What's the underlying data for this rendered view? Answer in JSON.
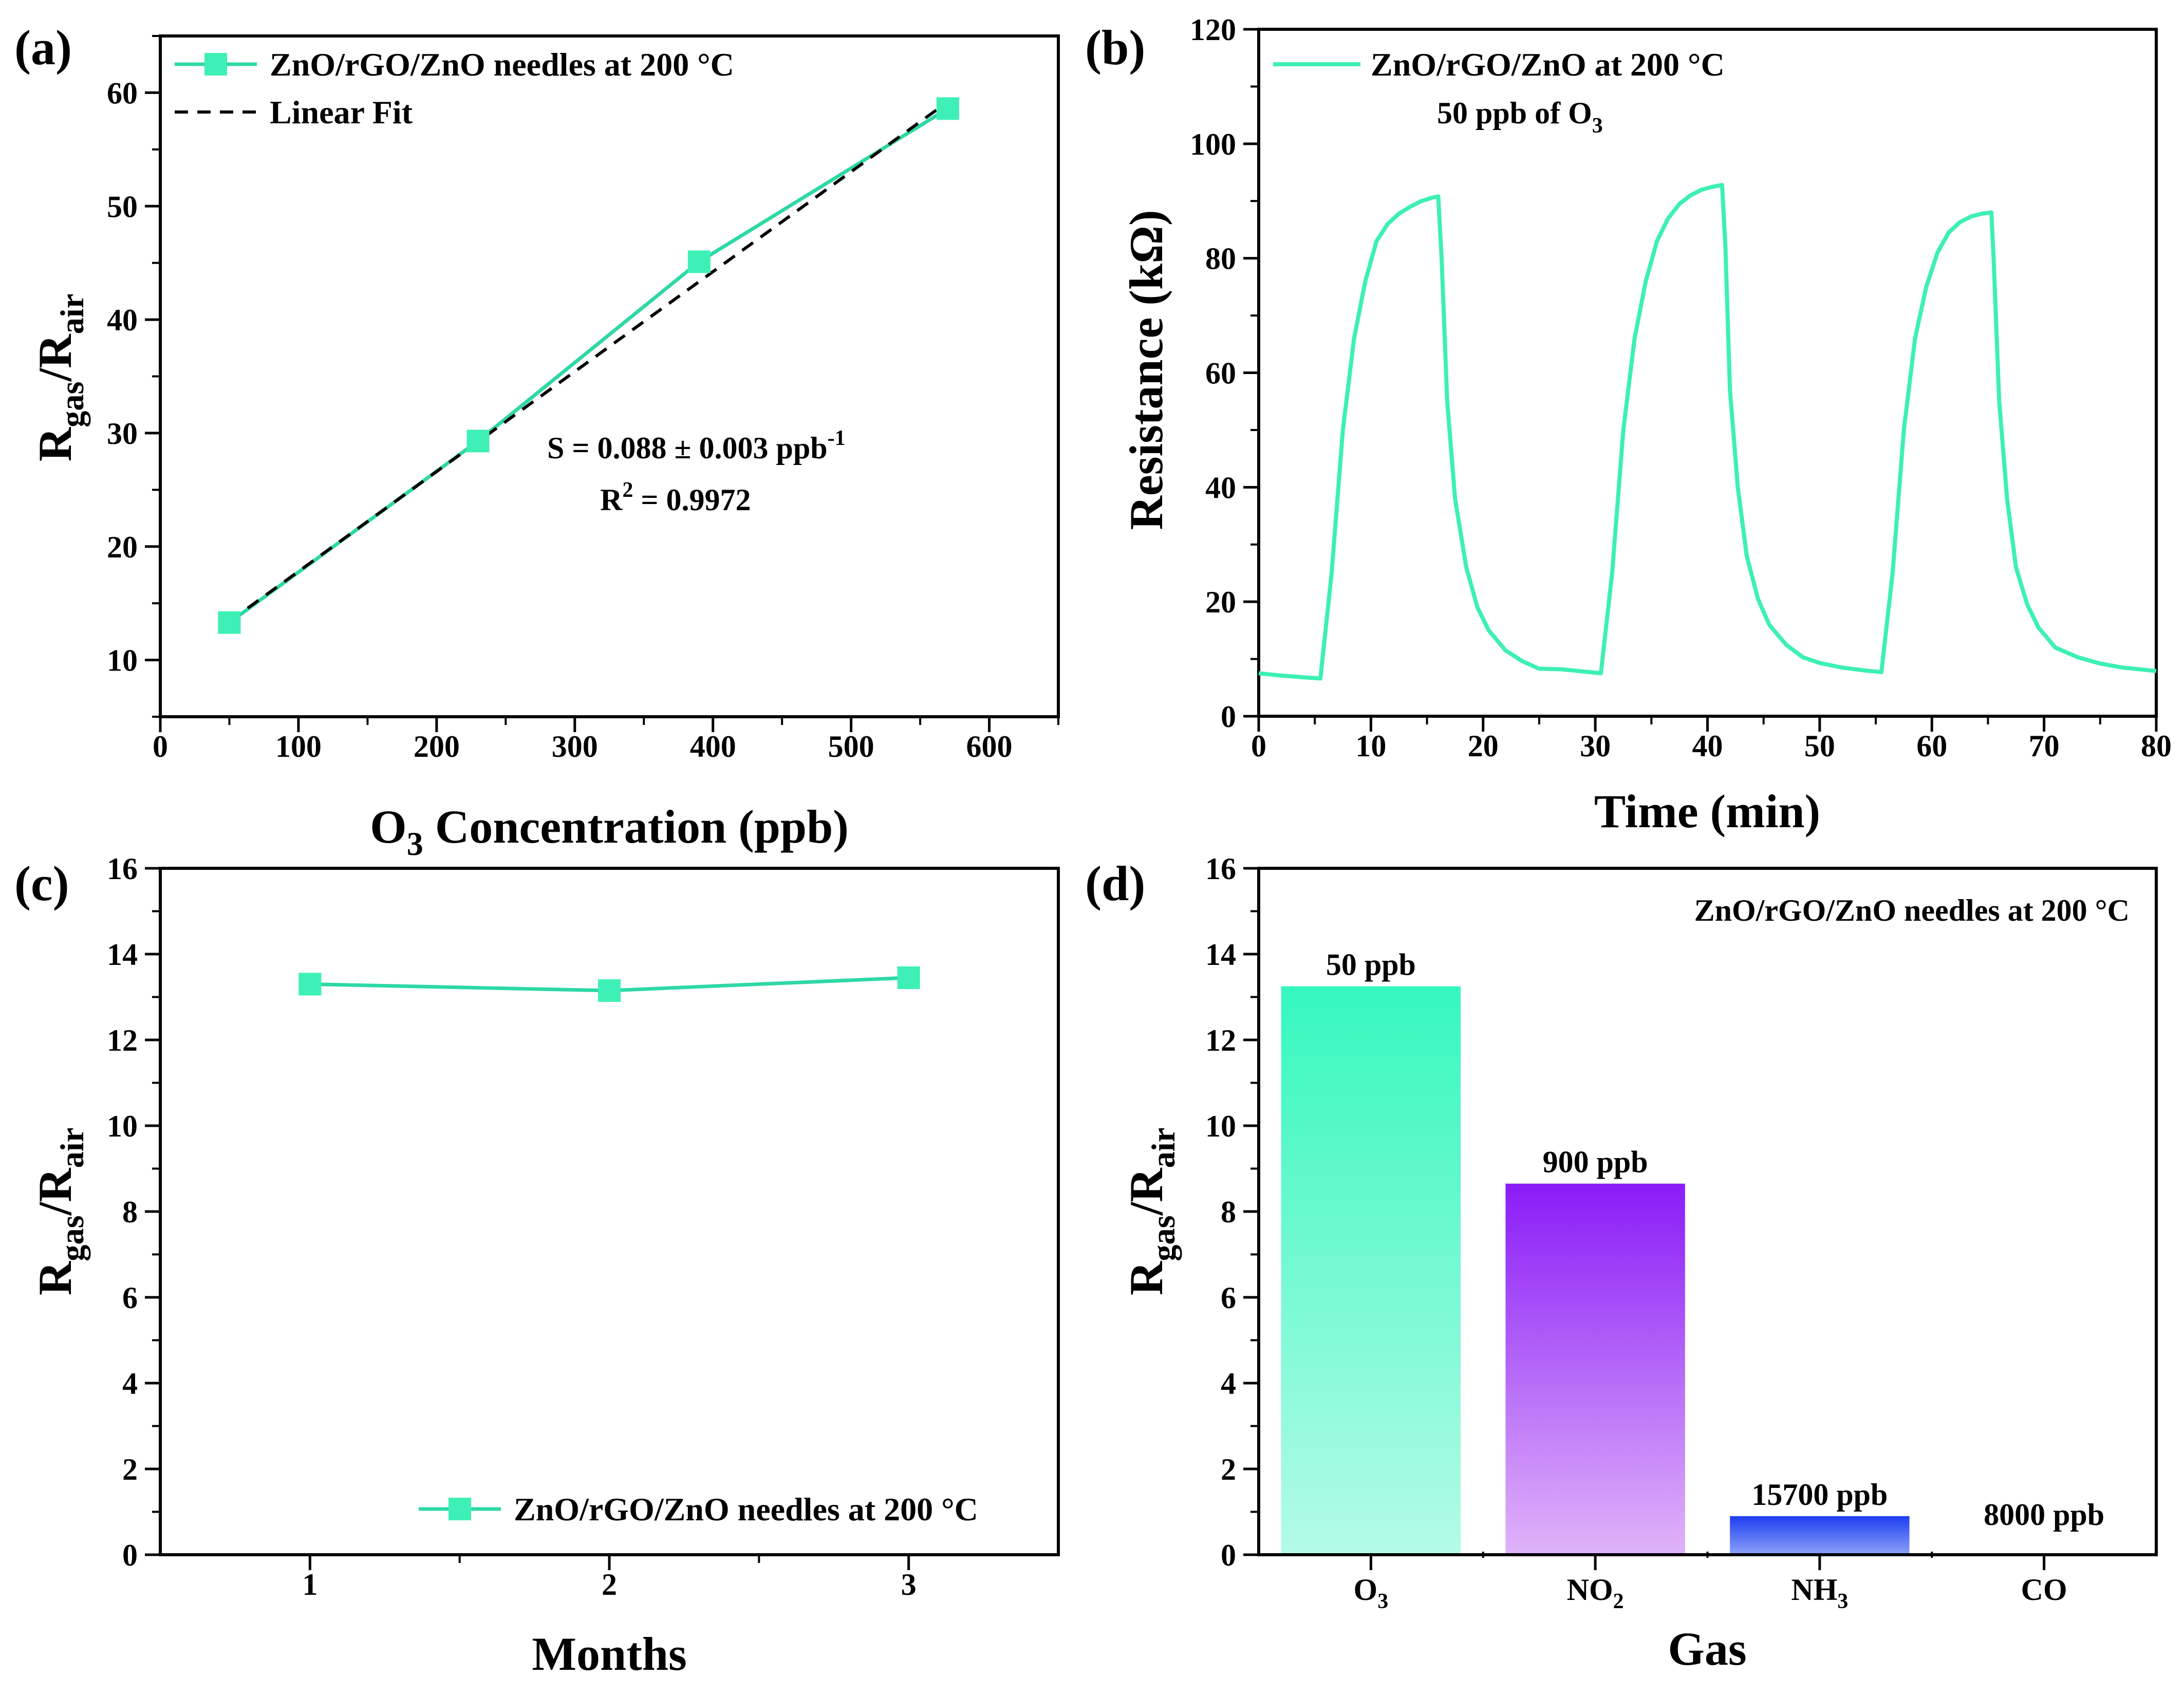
{
  "chart_data": [
    {
      "panel": "(a)",
      "type": "line",
      "title": "",
      "xlabel": {
        "main": "O",
        "sub": "3",
        "rest": " Concentration (ppb)"
      },
      "ylabel": {
        "a": "R",
        "asub": "gas",
        "b": "/R",
        "bsub": "air"
      },
      "xlim": [
        0,
        650
      ],
      "ylim": [
        5,
        65
      ],
      "xticks": [
        0,
        100,
        200,
        300,
        400,
        500,
        600
      ],
      "yticks": [
        10,
        20,
        30,
        40,
        50,
        60
      ],
      "series": [
        {
          "name": "ZnO/rGO/ZnO needles at 200 °C",
          "x": [
            50,
            230,
            390,
            570
          ],
          "y": [
            13.3,
            29.3,
            45.1,
            58.6
          ],
          "color": "#2ed8a4",
          "marker": "square"
        },
        {
          "name": "Linear Fit",
          "x": [
            50,
            570
          ],
          "y": [
            13.4,
            59.2
          ],
          "color": "#000000",
          "style": "dashed"
        }
      ],
      "annotations": {
        "slope": "S = 0.088 ± 0.003 ppb",
        "slope_sup": "-1",
        "r2_a": "R",
        "r2_sup": "2",
        "r2_b": " = 0.9972"
      },
      "legend_position": "top-left"
    },
    {
      "panel": "(b)",
      "type": "line",
      "xlabel": "Time (min)",
      "ylabel": "Resistance (kΩ)",
      "xlim": [
        0,
        80
      ],
      "ylim": [
        0,
        120
      ],
      "xticks": [
        0,
        10,
        20,
        30,
        40,
        50,
        60,
        70,
        80
      ],
      "yticks": [
        0,
        20,
        40,
        60,
        80,
        100,
        120
      ],
      "series": [
        {
          "name": "ZnO/rGO/ZnO at 200 °C",
          "color": "#3df0b2",
          "x": [
            0,
            2,
            4,
            5.5,
            6.5,
            7.5,
            8.5,
            9.5,
            10.5,
            11.5,
            12.5,
            13.5,
            14.5,
            15.5,
            16,
            16.3,
            16.8,
            17.5,
            18.5,
            19.5,
            20.5,
            22,
            23.5,
            25,
            27,
            29,
            30.5,
            31.5,
            32.5,
            33.5,
            34.5,
            35.5,
            36.5,
            37.5,
            38.5,
            39.5,
            40.5,
            41.3,
            41.6,
            42,
            42.7,
            43.5,
            44.5,
            45.5,
            47,
            48.5,
            50,
            52,
            54,
            55.5,
            56.5,
            57.5,
            58.5,
            59.5,
            60.5,
            61.5,
            62.5,
            63.5,
            64.5,
            65.3,
            65.5,
            66,
            66.7,
            67.5,
            68.5,
            69.5,
            71,
            73,
            75,
            77,
            80
          ],
          "y": [
            7.5,
            7.1,
            6.8,
            6.6,
            25,
            50,
            66,
            76,
            83,
            86,
            87.8,
            89,
            90,
            90.6,
            90.8,
            80,
            55,
            38,
            26,
            19,
            15,
            11.5,
            9.6,
            8.3,
            8.2,
            7.8,
            7.5,
            25,
            50,
            66,
            76,
            83,
            87,
            89.5,
            91,
            92,
            92.5,
            92.8,
            82,
            57,
            40,
            28,
            20.5,
            16,
            12.5,
            10.3,
            9.3,
            8.5,
            8,
            7.7,
            25,
            50,
            66,
            75,
            81,
            84.5,
            86.3,
            87.3,
            87.8,
            88,
            80,
            55,
            38,
            26,
            19.5,
            15.5,
            12,
            10.3,
            9.2,
            8.5,
            7.9
          ]
        }
      ],
      "annotations": {
        "conc_a": "50 ppb of O",
        "conc_sub": "3"
      },
      "legend_position": "top-left"
    },
    {
      "panel": "(c)",
      "type": "line",
      "xlabel": "Months",
      "ylabel": {
        "a": "R",
        "asub": "gas",
        "b": "/R",
        "bsub": "air"
      },
      "xlim": [
        0.5,
        3.5
      ],
      "ylim": [
        0,
        16
      ],
      "xticks": [
        1,
        2,
        3
      ],
      "yticks": [
        0,
        2,
        4,
        6,
        8,
        10,
        12,
        14,
        16
      ],
      "series": [
        {
          "name": "ZnO/rGO/ZnO needles at 200 °C",
          "x": [
            1,
            2,
            3
          ],
          "y": [
            13.3,
            13.15,
            13.45
          ],
          "color": "#2ed8a4",
          "marker": "square"
        }
      ],
      "legend_position": "bottom-right"
    },
    {
      "panel": "(d)",
      "type": "bar",
      "xlabel": "Gas",
      "ylabel": {
        "a": "R",
        "asub": "gas",
        "b": "/R",
        "bsub": "air"
      },
      "ylim": [
        0,
        16
      ],
      "yticks": [
        0,
        2,
        4,
        6,
        8,
        10,
        12,
        14,
        16
      ],
      "categories": [
        {
          "main": "O",
          "sub": "3",
          "rest": ""
        },
        {
          "main": "NO",
          "sub": "2",
          "rest": ""
        },
        {
          "main": "NH",
          "sub": "3",
          "rest": ""
        },
        {
          "main": "CO",
          "sub": "",
          "rest": ""
        }
      ],
      "values": [
        13.25,
        8.65,
        0.9,
        0.0
      ],
      "bar_labels": [
        "50 ppb",
        "900 ppb",
        "15700 ppb",
        "8000 ppb"
      ],
      "bar_colors": [
        [
          "#35f7bf",
          "#b4fbe6"
        ],
        [
          "#8a1cf7",
          "#e0b3f9"
        ],
        [
          "#1d3df0",
          "#8da2f8"
        ],
        [
          "#ffffff",
          "#ffffff"
        ]
      ],
      "caption": "ZnO/rGO/ZnO needles at 200 °C"
    }
  ]
}
